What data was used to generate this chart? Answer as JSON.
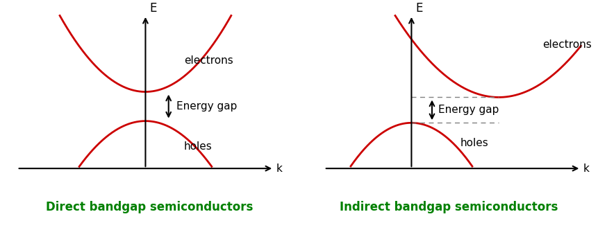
{
  "bg_color": "#ffffff",
  "curve_color": "#cc0000",
  "text_color": "#000000",
  "green_color": "#008000",
  "axis_color": "#000000",
  "direct_label": "Direct bandgap semiconductors",
  "indirect_label": "Indirect bandgap semiconductors",
  "electrons_label": "electrons",
  "holes_label": "holes",
  "energy_gap_label": "Energy gap",
  "e_label": "E",
  "k_label": "k",
  "figsize": [
    8.61,
    3.32
  ],
  "dpi": 100
}
